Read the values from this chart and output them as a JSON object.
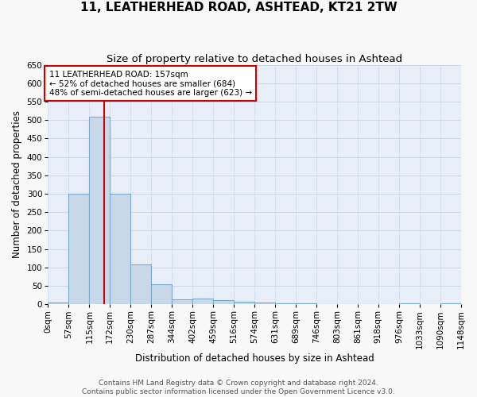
{
  "title": "11, LEATHERHEAD ROAD, ASHTEAD, KT21 2TW",
  "subtitle": "Size of property relative to detached houses in Ashtead",
  "xlabel": "Distribution of detached houses by size in Ashtead",
  "ylabel": "Number of detached properties",
  "bin_edges": [
    0,
    57,
    115,
    172,
    230,
    287,
    344,
    402,
    459,
    516,
    574,
    631,
    689,
    746,
    803,
    861,
    918,
    976,
    1033,
    1090,
    1148
  ],
  "bar_heights": [
    5,
    300,
    510,
    300,
    108,
    55,
    13,
    15,
    12,
    8,
    5,
    3,
    2,
    0,
    1,
    0,
    0,
    2,
    0,
    3
  ],
  "bar_color": "#c8d8e8",
  "bar_edgecolor": "#7aaac8",
  "bar_linewidth": 0.8,
  "grid_color": "#d0d8e8",
  "background_color": "#e8eef8",
  "fig_background_color": "#f8f8f8",
  "property_line_x": 157,
  "property_line_color": "#cc0000",
  "annotation_text": "11 LEATHERHEAD ROAD: 157sqm\n← 52% of detached houses are smaller (684)\n48% of semi-detached houses are larger (623) →",
  "annotation_box_color": "#ffffff",
  "annotation_box_edgecolor": "#cc0000",
  "ylim": [
    0,
    650
  ],
  "yticks": [
    0,
    50,
    100,
    150,
    200,
    250,
    300,
    350,
    400,
    450,
    500,
    550,
    600,
    650
  ],
  "tick_label_fontsize": 7.5,
  "title_fontsize": 11,
  "subtitle_fontsize": 9.5,
  "xlabel_fontsize": 8.5,
  "ylabel_fontsize": 8.5,
  "annotation_fontsize": 7.5,
  "footer_text": "Contains HM Land Registry data © Crown copyright and database right 2024.\nContains public sector information licensed under the Open Government Licence v3.0.",
  "footer_fontsize": 6.5
}
